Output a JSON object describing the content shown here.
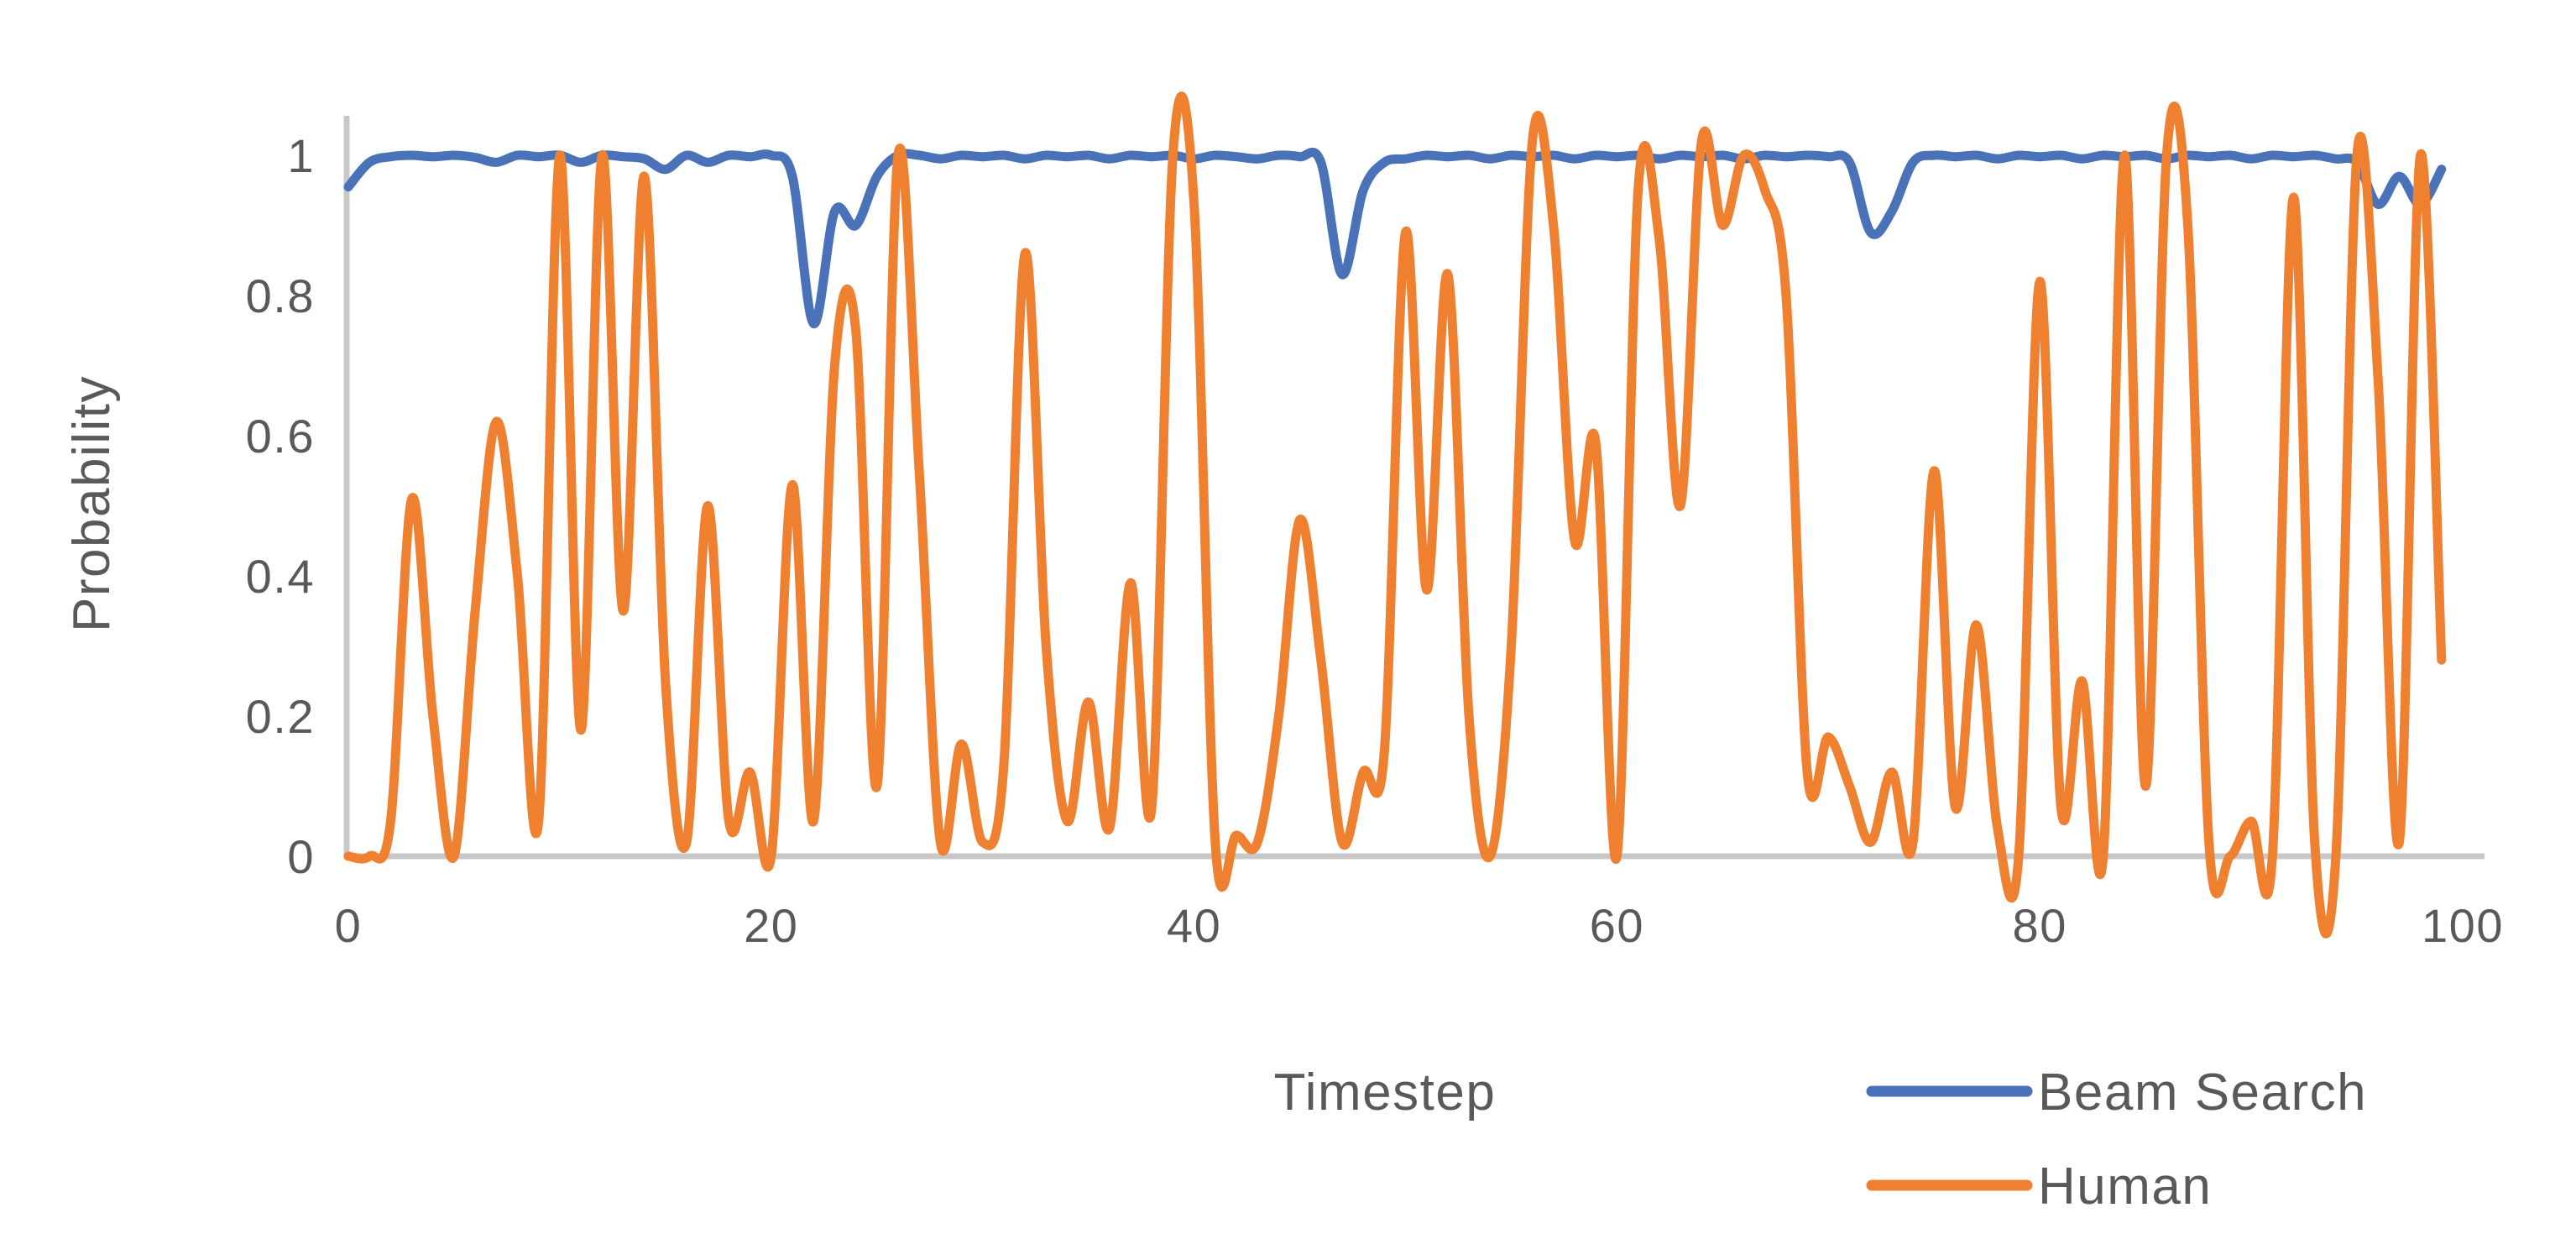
{
  "chart_data": {
    "type": "line",
    "title": "",
    "xlabel": "Timestep",
    "ylabel": "Probability",
    "xlim": [
      0,
      100
    ],
    "ylim": [
      0,
      1
    ],
    "x_ticks": [
      0,
      20,
      40,
      60,
      80,
      100
    ],
    "y_ticks": [
      0,
      0.2,
      0.4,
      0.6,
      0.8,
      1
    ],
    "grid": false,
    "legend_position": "bottom-right",
    "axis_color": "#c8c8c8",
    "label_color": "#595959",
    "x": [
      0,
      1,
      2,
      3,
      4,
      5,
      6,
      7,
      8,
      9,
      10,
      11,
      12,
      13,
      14,
      15,
      16,
      17,
      18,
      19,
      20,
      21,
      22,
      23,
      24,
      25,
      26,
      27,
      28,
      29,
      30,
      31,
      32,
      33,
      34,
      35,
      36,
      37,
      38,
      39,
      40,
      41,
      42,
      43,
      44,
      45,
      46,
      47,
      48,
      49,
      50,
      51,
      52,
      53,
      54,
      55,
      56,
      57,
      58,
      59,
      60,
      61,
      62,
      63,
      64,
      65,
      66,
      67,
      68,
      69,
      70,
      71,
      72,
      73,
      74,
      75,
      76,
      77,
      78,
      79,
      80,
      81,
      82,
      83,
      84,
      85,
      86,
      87,
      88,
      89,
      90,
      91,
      92,
      93,
      94,
      95,
      96,
      97,
      98,
      99
    ],
    "series": [
      {
        "name": "Beam Search",
        "color": "#4a72b8",
        "values": [
          0.955,
          0.99,
          0.998,
          1.0,
          0.998,
          1.0,
          0.997,
          0.99,
          1.0,
          0.998,
          1.0,
          0.99,
          1.0,
          0.998,
          0.995,
          0.98,
          1.0,
          0.99,
          1.0,
          0.998,
          1.0,
          0.97,
          0.76,
          0.92,
          0.9,
          0.97,
          1.0,
          1.0,
          0.995,
          1.0,
          0.998,
          1.0,
          0.995,
          1.0,
          0.998,
          1.0,
          0.995,
          1.0,
          0.998,
          1.0,
          0.995,
          1.0,
          0.998,
          0.995,
          1.0,
          0.998,
          0.99,
          0.83,
          0.95,
          0.99,
          0.995,
          1.0,
          0.998,
          1.0,
          0.995,
          1.0,
          0.998,
          1.0,
          0.995,
          1.0,
          0.998,
          1.0,
          0.995,
          1.0,
          0.998,
          1.0,
          0.995,
          1.0,
          0.998,
          1.0,
          0.998,
          0.99,
          0.89,
          0.92,
          0.99,
          1.0,
          0.998,
          1.0,
          0.995,
          1.0,
          0.998,
          1.0,
          0.995,
          1.0,
          0.998,
          1.0,
          0.995,
          1.0,
          0.998,
          1.0,
          0.995,
          1.0,
          0.998,
          1.0,
          0.995,
          0.99,
          0.93,
          0.97,
          0.93,
          0.98
        ]
      },
      {
        "name": "Human",
        "color": "#ee8030",
        "values": [
          0.0,
          0.0,
          0.05,
          0.51,
          0.2,
          0.0,
          0.35,
          0.62,
          0.4,
          0.05,
          1.0,
          0.18,
          1.0,
          0.35,
          0.97,
          0.25,
          0.02,
          0.5,
          0.05,
          0.12,
          0.0,
          0.53,
          0.05,
          0.7,
          0.75,
          0.1,
          1.0,
          0.55,
          0.02,
          0.16,
          0.02,
          0.13,
          0.86,
          0.3,
          0.05,
          0.22,
          0.04,
          0.39,
          0.07,
          1.0,
          0.93,
          0.02,
          0.03,
          0.02,
          0.2,
          0.48,
          0.28,
          0.02,
          0.12,
          0.15,
          0.89,
          0.38,
          0.83,
          0.2,
          0.0,
          0.3,
          1.02,
          0.9,
          0.45,
          0.59,
          0.0,
          0.95,
          0.88,
          0.5,
          1.02,
          0.9,
          1.0,
          0.95,
          0.8,
          0.12,
          0.17,
          0.1,
          0.02,
          0.12,
          0.02,
          0.55,
          0.07,
          0.33,
          0.04,
          0.0,
          0.82,
          0.07,
          0.25,
          0.0,
          1.0,
          0.1,
          1.0,
          0.9,
          0.02,
          0.0,
          0.05,
          0.0,
          0.94,
          0.02,
          0.0,
          1.0,
          0.68,
          0.02,
          1.0,
          0.28
        ]
      }
    ]
  }
}
